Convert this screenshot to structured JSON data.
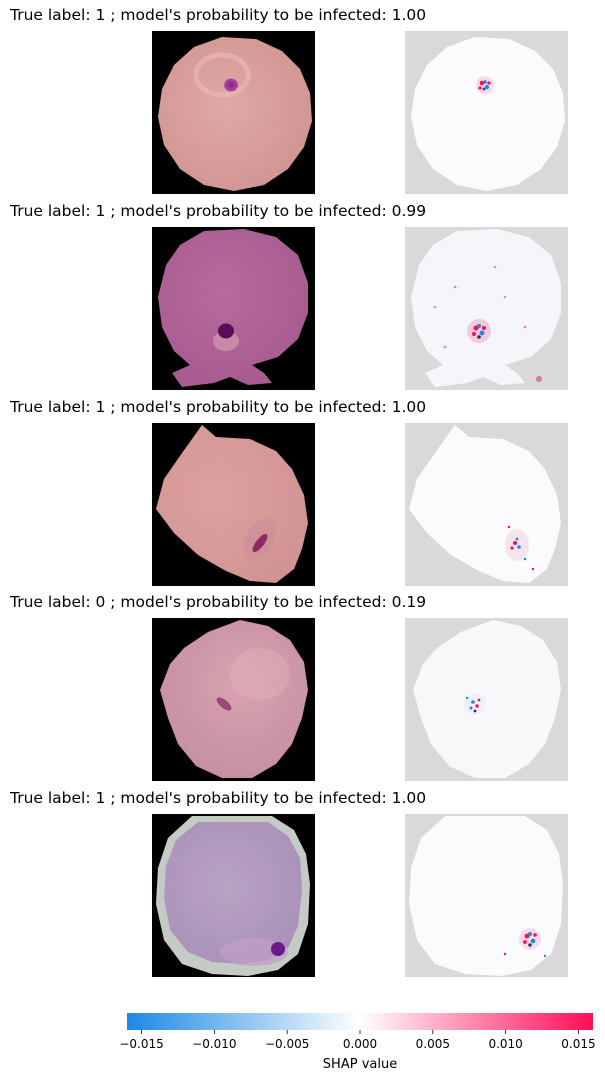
{
  "chart_data": {
    "type": "image_grid",
    "rows": [
      {
        "title": "True label: 1 ; model's probability to be infected: 1.00",
        "true_label": 1,
        "probability": 1.0
      },
      {
        "title": "True label: 1 ; model's probability to be infected: 0.99",
        "true_label": 1,
        "probability": 0.99
      },
      {
        "title": "True label: 1 ; model's probability to be infected: 1.00",
        "true_label": 1,
        "probability": 1.0
      },
      {
        "title": "True label: 0 ; model's probability to be infected: 0.19",
        "true_label": 0,
        "probability": 0.19
      },
      {
        "title": "True label: 1 ; model's probability to be infected: 1.00",
        "true_label": 1,
        "probability": 1.0
      }
    ],
    "colorbar": {
      "label": "SHAP value",
      "range": [
        -0.016,
        0.016
      ],
      "ticks": [
        -0.015,
        -0.01,
        -0.005,
        0.0,
        0.005,
        0.01,
        0.015
      ],
      "tick_labels": [
        "−0.015",
        "−0.010",
        "−0.005",
        "0.000",
        "0.005",
        "0.010",
        "0.015"
      ],
      "colors": {
        "negative": "#1E88E5",
        "zero": "#FFFFFF",
        "positive": "#FF0D57"
      }
    }
  }
}
